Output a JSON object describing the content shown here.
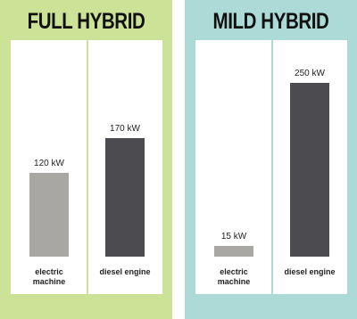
{
  "chart_data": [
    {
      "type": "bar",
      "title": "FULL HYBRID",
      "background": "#cce397",
      "divider_color": "#cce397",
      "categories": [
        "electric machine",
        "diesel engine"
      ],
      "values": [
        120,
        170
      ],
      "value_labels": [
        "120 kW",
        "170 kW"
      ],
      "colors": [
        "#a9a7a4",
        "#4b4b50"
      ],
      "ylim": [
        0,
        300
      ]
    },
    {
      "type": "bar",
      "title": "MILD HYBRID",
      "background": "#acdad6",
      "divider_color": "#acdad6",
      "categories": [
        "electric machine",
        "diesel engine"
      ],
      "values": [
        15,
        250
      ],
      "value_labels": [
        "15 kW",
        "250 kW"
      ],
      "colors": [
        "#a9a7a4",
        "#4b4b50"
      ],
      "ylim": [
        0,
        300
      ]
    }
  ]
}
